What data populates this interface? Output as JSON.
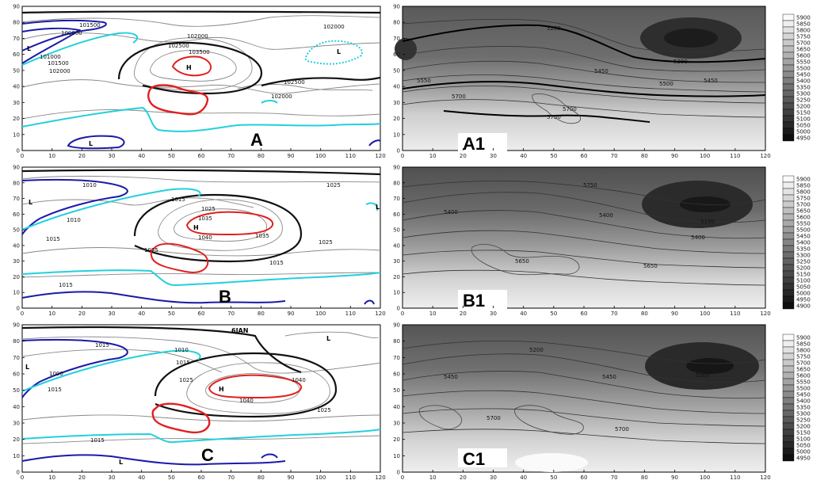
{
  "figure": {
    "x_ticks": [
      "0",
      "10",
      "20",
      "30",
      "40",
      "50",
      "60",
      "70",
      "80",
      "90",
      "100",
      "110",
      "120"
    ],
    "y_ticks": [
      "0",
      "10",
      "20",
      "30",
      "40",
      "50",
      "60",
      "70",
      "80",
      "90"
    ]
  },
  "panels": [
    {
      "id": "A",
      "label": "A",
      "contour_labels": [
        "101500",
        "100000",
        "101000",
        "101500",
        "102000",
        "102000",
        "102500",
        "103500",
        "102500",
        "102000",
        "102000"
      ],
      "markers": [
        "H",
        "L",
        "L",
        "L"
      ],
      "date_label": ""
    },
    {
      "id": "B",
      "label": "B",
      "contour_labels": [
        "1010",
        "1015",
        "1010",
        "1015",
        "1025",
        "1025",
        "1035",
        "1040",
        "1035",
        "1025",
        "1025",
        "1015",
        "1015"
      ],
      "markers": [
        "H",
        "L",
        "L"
      ],
      "date_label": ""
    },
    {
      "id": "C",
      "label": "C",
      "contour_labels": [
        "1015",
        "1010",
        "1015",
        "1000",
        "1015",
        "1025",
        "1040",
        "1040",
        "1025",
        "1015"
      ],
      "markers": [
        "H",
        "L",
        "L",
        "L"
      ],
      "date_label": "6JAN"
    }
  ],
  "height_panels": [
    {
      "id": "A1",
      "label": "A1",
      "contour_labels": [
        "5200",
        "5450",
        "5550",
        "5200",
        "5500",
        "5450",
        "5700",
        "5700",
        "5750"
      ]
    },
    {
      "id": "B1",
      "label": "B1",
      "contour_labels": [
        "5750",
        "5400",
        "5400",
        "5150",
        "5400",
        "5650",
        "5650"
      ]
    },
    {
      "id": "C1",
      "label": "C1",
      "contour_labels": [
        "5200",
        "5450",
        "5450",
        "5200",
        "5700",
        "5700"
      ]
    }
  ],
  "legends": [
    [
      "5900",
      "5850",
      "5800",
      "5750",
      "5700",
      "5650",
      "5600",
      "5550",
      "5500",
      "5450",
      "5400",
      "5350",
      "5300",
      "5250",
      "5200",
      "5150",
      "5100",
      "5050",
      "5000",
      "4950"
    ],
    [
      "5900",
      "5850",
      "5800",
      "5750",
      "5700",
      "5650",
      "5600",
      "5550",
      "5500",
      "5450",
      "5400",
      "5350",
      "5300",
      "5250",
      "5200",
      "5150",
      "5100",
      "5050",
      "5000",
      "4950",
      "4900"
    ],
    [
      "5900",
      "5850",
      "5800",
      "5750",
      "5700",
      "5650",
      "5600",
      "5550",
      "5500",
      "5450",
      "5400",
      "5350",
      "5300",
      "5250",
      "5200",
      "5150",
      "5100",
      "5050",
      "5000",
      "4950"
    ]
  ],
  "colors": {
    "high": "#e02020",
    "low": "#1a1aa8",
    "cyan": "#22d0dd",
    "thick": "#111111",
    "thin": "#777777"
  }
}
